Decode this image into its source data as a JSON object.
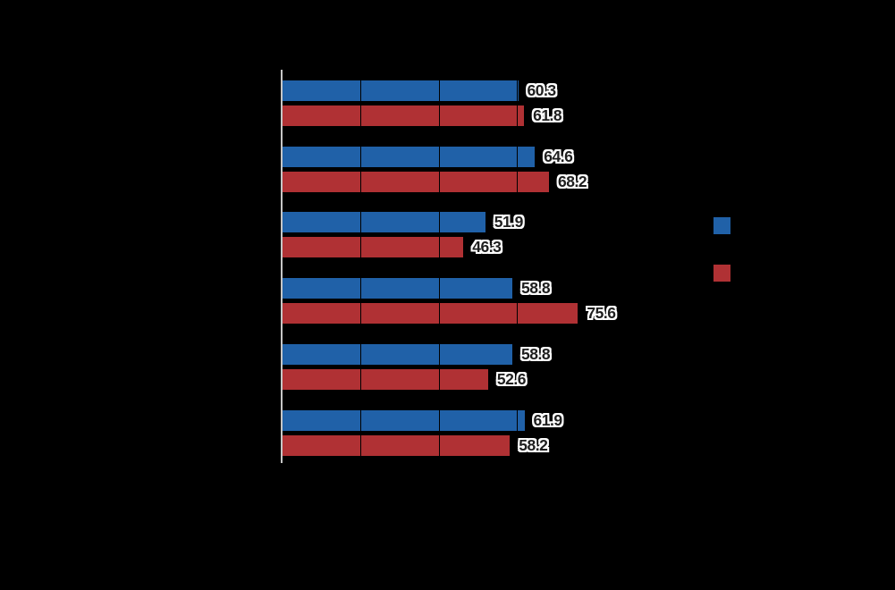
{
  "chart_data": {
    "type": "bar",
    "orientation": "horizontal",
    "title": "",
    "xlabel": "",
    "ylabel": "",
    "categories": [
      "",
      "",
      "",
      "",
      "",
      ""
    ],
    "series": [
      {
        "id": "series-blue",
        "label": "",
        "color": "#2061a8",
        "values": [
          60.3,
          64.6,
          51.9,
          58.8,
          58.8,
          61.9
        ]
      },
      {
        "id": "series-red",
        "label": "",
        "color": "#b03134",
        "values": [
          61.8,
          68.2,
          46.3,
          75.6,
          52.6,
          58.2
        ]
      }
    ],
    "data_labels_visible": true,
    "data_label_decimals": 1,
    "x_gridlines": [
      20,
      40,
      60,
      80
    ],
    "x_tick_interval": 20,
    "grid": true,
    "legend_position": "right"
  },
  "legend": {
    "swatches": [
      {
        "id": "legend-swatch-blue",
        "color": "#2061a8"
      },
      {
        "id": "legend-swatch-red",
        "color": "#b03134"
      }
    ]
  },
  "colors": {
    "background": "#000000",
    "axis_line": "#c6c6c6",
    "gridline": "#000000",
    "data_label_text": "#1e1e1e",
    "data_label_halo": "#ffffff"
  }
}
